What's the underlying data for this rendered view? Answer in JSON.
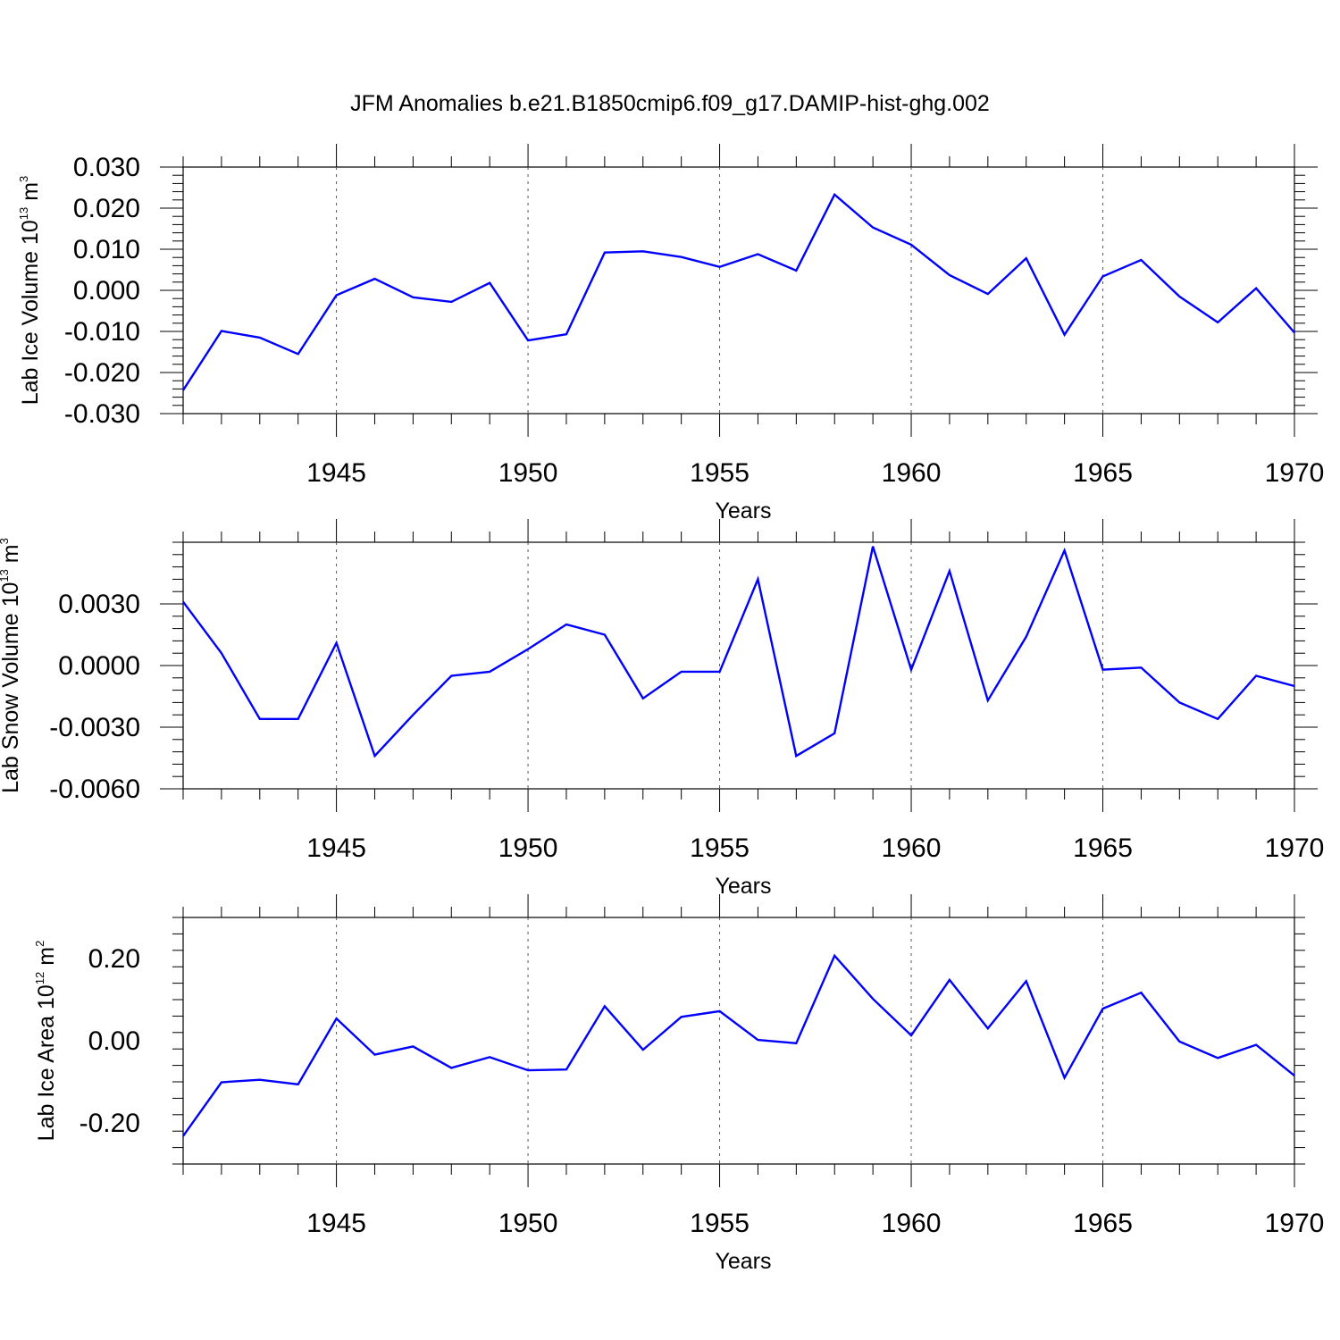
{
  "title": "JFM Anomalies b.e21.B1850cmip6.f09_g17.DAMIP-hist-ghg.002",
  "colors": {
    "line": "#0000ff",
    "axis": "#000000",
    "refline": "#555555"
  },
  "chart_data": [
    {
      "type": "line",
      "ylabel": {
        "text": "Lab Ice Volume 10",
        "sup": "13",
        "unit": "m",
        "unit_sup": "3"
      },
      "xlabel": "Years",
      "xlim": [
        1941,
        1970
      ],
      "ylim": [
        -0.03,
        0.03
      ],
      "xticks": [
        1945,
        1950,
        1955,
        1960,
        1965,
        1970
      ],
      "yticks": [
        -0.03,
        -0.02,
        -0.01,
        0.0,
        0.01,
        0.02,
        0.03
      ],
      "ytick_labels": [
        "-0.030",
        "-0.020",
        "-0.010",
        "0.000",
        "0.010",
        "0.020",
        "0.030"
      ],
      "reference_lines": [
        1945,
        1950,
        1955,
        1960,
        1965
      ],
      "x": [
        1941,
        1942,
        1943,
        1944,
        1945,
        1946,
        1947,
        1948,
        1949,
        1950,
        1951,
        1952,
        1953,
        1954,
        1955,
        1956,
        1957,
        1958,
        1959,
        1960,
        1961,
        1962,
        1963,
        1964,
        1965,
        1966,
        1967,
        1968,
        1969,
        1970
      ],
      "y": [
        -0.0243,
        -0.0099,
        -0.0115,
        -0.0155,
        -0.0012,
        0.0028,
        -0.0017,
        -0.0028,
        0.0018,
        -0.0122,
        -0.0107,
        0.0092,
        0.0095,
        0.0081,
        0.0057,
        0.0088,
        0.0048,
        0.0233,
        0.0153,
        0.0111,
        0.0037,
        -0.0009,
        0.0078,
        -0.0108,
        0.0034,
        0.0074,
        -0.0015,
        -0.0078,
        0.0005,
        -0.0103
      ]
    },
    {
      "type": "line",
      "ylabel": {
        "text": "Lab Snow Volume 10",
        "sup": "13",
        "unit": "m",
        "unit_sup": "3"
      },
      "xlabel": "Years",
      "xlim": [
        1941,
        1970
      ],
      "ylim": [
        -0.006,
        0.006
      ],
      "xticks": [
        1945,
        1950,
        1955,
        1960,
        1965,
        1970
      ],
      "yticks": [
        -0.006,
        -0.003,
        0.0,
        0.003
      ],
      "ytick_labels": [
        "-0.0060",
        "-0.0030",
        "0.0000",
        "0.0030"
      ],
      "reference_lines": [
        1945,
        1950,
        1955,
        1960,
        1965
      ],
      "x": [
        1941,
        1942,
        1943,
        1944,
        1945,
        1946,
        1947,
        1948,
        1949,
        1950,
        1951,
        1952,
        1953,
        1954,
        1955,
        1956,
        1957,
        1958,
        1959,
        1960,
        1961,
        1962,
        1963,
        1964,
        1965,
        1966,
        1967,
        1968,
        1969,
        1970
      ],
      "y": [
        0.0031,
        0.0006,
        -0.0026,
        -0.0026,
        0.0011,
        -0.0044,
        -0.0024,
        -0.0005,
        -0.0003,
        0.0008,
        0.002,
        0.0015,
        -0.0016,
        -0.0003,
        -0.0003,
        0.0042,
        -0.0044,
        -0.0033,
        0.0058,
        -0.0002,
        0.0046,
        -0.0017,
        0.0014,
        0.0056,
        -0.0002,
        -0.0001,
        -0.0018,
        -0.0026,
        -0.0005,
        -0.001
      ]
    },
    {
      "type": "line",
      "ylabel": {
        "text": "Lab Ice Area 10",
        "sup": "12",
        "unit": "m",
        "unit_sup": "2"
      },
      "xlabel": "Years",
      "xlim": [
        1941,
        1970
      ],
      "ylim": [
        -0.3,
        0.3
      ],
      "xticks": [
        1945,
        1950,
        1955,
        1960,
        1965,
        1970
      ],
      "yticks": [
        -0.2,
        0.0,
        0.2
      ],
      "ytick_labels": [
        "-0.20",
        "0.00",
        "0.20"
      ],
      "reference_lines": [
        1945,
        1950,
        1955,
        1960,
        1965
      ],
      "x": [
        1941,
        1942,
        1943,
        1944,
        1945,
        1946,
        1947,
        1948,
        1949,
        1950,
        1951,
        1952,
        1953,
        1954,
        1955,
        1956,
        1957,
        1958,
        1959,
        1960,
        1961,
        1962,
        1963,
        1964,
        1965,
        1966,
        1967,
        1968,
        1969,
        1970
      ],
      "y": [
        -0.232,
        -0.101,
        -0.095,
        -0.106,
        0.054,
        -0.034,
        -0.014,
        -0.066,
        -0.04,
        -0.072,
        -0.07,
        0.084,
        -0.022,
        0.058,
        0.072,
        0.002,
        -0.006,
        0.207,
        0.102,
        0.013,
        0.148,
        0.03,
        0.145,
        -0.09,
        0.078,
        0.117,
        -0.002,
        -0.042,
        -0.01,
        -0.085
      ]
    }
  ]
}
